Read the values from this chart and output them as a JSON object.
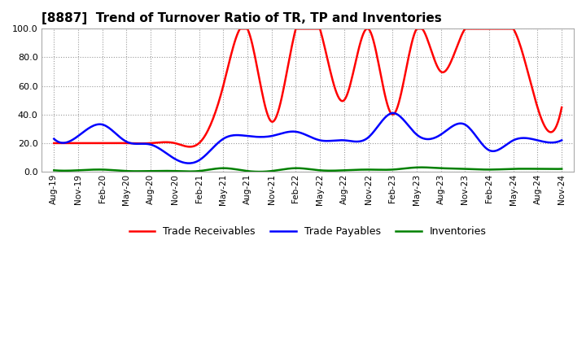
{
  "title": "[8887]  Trend of Turnover Ratio of TR, TP and Inventories",
  "xlabels": [
    "Aug-19",
    "Nov-19",
    "Feb-20",
    "May-20",
    "Aug-20",
    "Nov-20",
    "Feb-21",
    "May-21",
    "Aug-21",
    "Nov-21",
    "Feb-22",
    "May-22",
    "Aug-22",
    "Nov-22",
    "Feb-23",
    "May-23",
    "Aug-23",
    "Nov-23",
    "Feb-24",
    "May-24",
    "Aug-24",
    "Nov-24"
  ],
  "ylim": [
    0.0,
    100.0
  ],
  "yticks": [
    0.0,
    20.0,
    40.0,
    60.0,
    80.0,
    100.0
  ],
  "trade_receivables": [
    20.0,
    20.0,
    20.0,
    20.0,
    20.0,
    20.0,
    20.0,
    60.0,
    100.0,
    35.0,
    100.0,
    100.0,
    50.0,
    100.0,
    40.0,
    100.0,
    70.0,
    100.0,
    100.0,
    100.0,
    45.0,
    45.0
  ],
  "trade_payables": [
    23.0,
    25.0,
    33.0,
    21.0,
    19.0,
    9.0,
    8.0,
    23.0,
    25.0,
    25.0,
    28.0,
    22.0,
    22.0,
    24.0,
    41.0,
    26.0,
    26.0,
    33.0,
    15.0,
    22.0,
    22.0,
    22.0
  ],
  "inventories": [
    1.0,
    1.0,
    1.5,
    0.5,
    0.5,
    0.5,
    0.5,
    2.5,
    0.5,
    0.5,
    2.5,
    1.0,
    1.0,
    1.5,
    1.5,
    3.0,
    2.5,
    2.0,
    1.5,
    2.0,
    2.0,
    2.0
  ],
  "tr_color": "#FF0000",
  "tp_color": "#0000FF",
  "inv_color": "#008000",
  "bg_color": "#FFFFFF",
  "grid_color": "#999999",
  "title_fontsize": 11,
  "legend_labels": [
    "Trade Receivables",
    "Trade Payables",
    "Inventories"
  ]
}
